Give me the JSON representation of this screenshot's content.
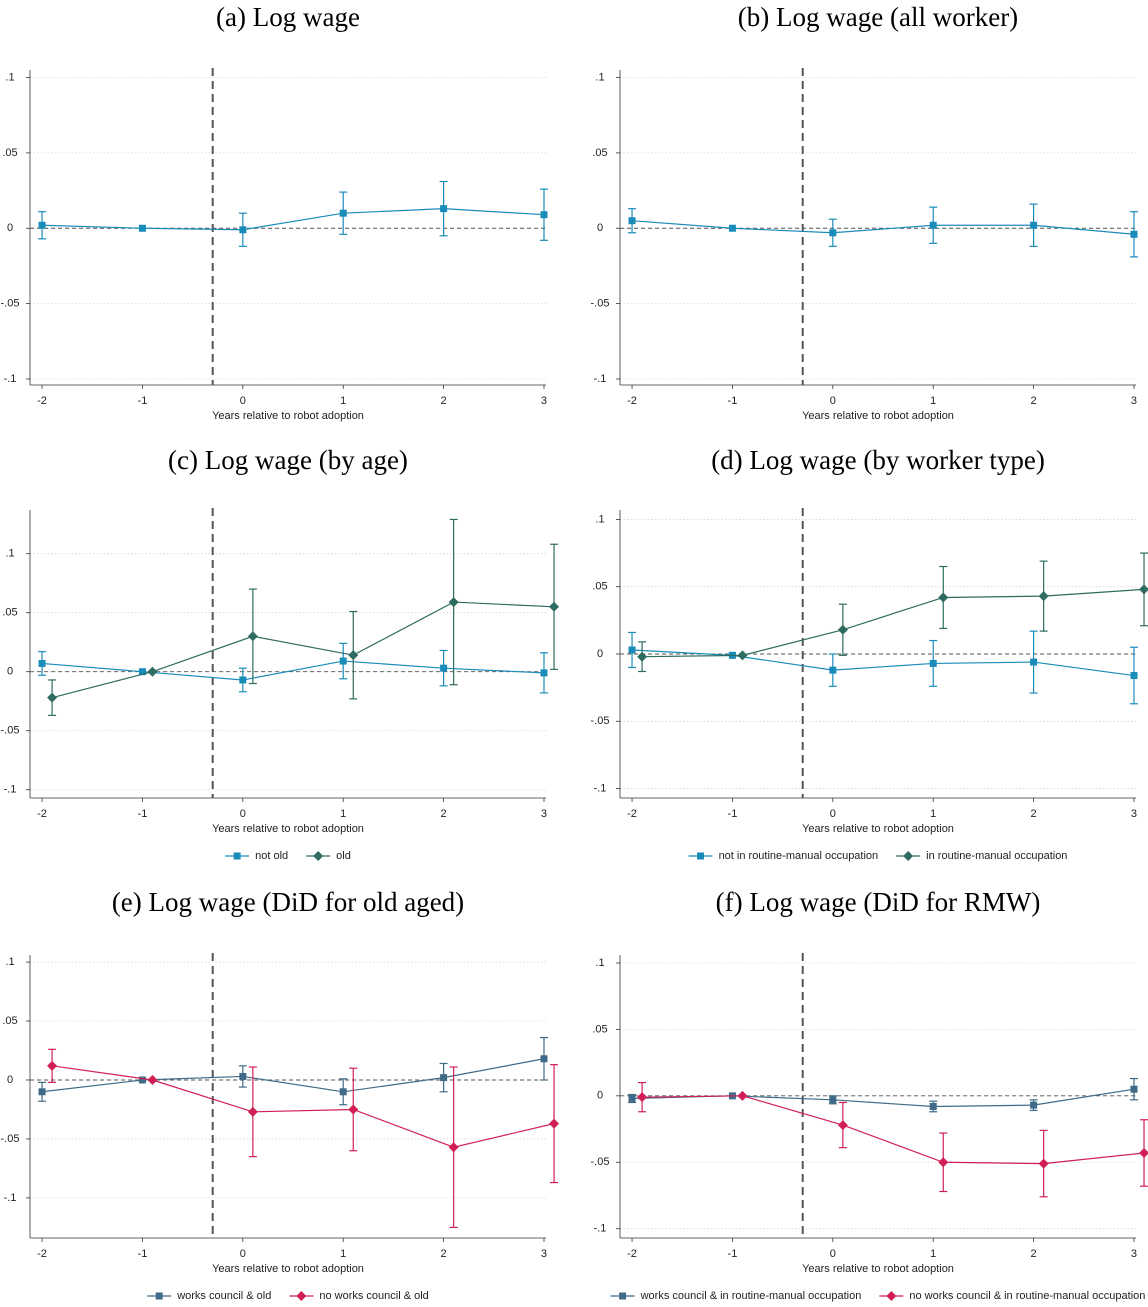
{
  "chart_data": [
    {
      "type": "line",
      "title": "(a) Log wage",
      "xlabel": "Years relative to robot adoption",
      "xlim": [
        -2.12,
        3.02
      ],
      "xticks": [
        -2,
        -1,
        0,
        1,
        2,
        3
      ],
      "ylim": [
        -0.104,
        0.105
      ],
      "yticks": [
        {
          "value": -0.1,
          "label": "-.1"
        },
        {
          "value": -0.05,
          "label": "-.05"
        },
        0,
        {
          "value": 0.05,
          "label": ".05"
        },
        {
          "value": 0.1,
          "label": ".1"
        }
      ],
      "vline": -0.3,
      "hline": 0,
      "grid": true,
      "series": [
        {
          "color": "#1a8cba",
          "marker": "square",
          "x": [
            -2,
            -1,
            0,
            1,
            2,
            3
          ],
          "values": [
            0.002,
            0,
            -0.001,
            0.01,
            0.013,
            0.009
          ],
          "errors": [
            0.009,
            null,
            0.011,
            0.014,
            0.018,
            0.017
          ]
        }
      ]
    },
    {
      "type": "line",
      "title": "(b) Log wage (all worker)",
      "xlabel": "Years relative to robot adoption",
      "xlim": [
        -2.12,
        3.02
      ],
      "xticks": [
        -2,
        -1,
        0,
        1,
        2,
        3
      ],
      "ylim": [
        -0.104,
        0.105
      ],
      "yticks": [
        {
          "value": -0.1,
          "label": "-.1"
        },
        {
          "value": -0.05,
          "label": "-.05"
        },
        0,
        {
          "value": 0.05,
          "label": ".05"
        },
        {
          "value": 0.1,
          "label": ".1"
        }
      ],
      "vline": -0.3,
      "hline": 0,
      "grid": true,
      "series": [
        {
          "color": "#1a8cba",
          "marker": "square",
          "x": [
            -2,
            -1,
            0,
            1,
            2,
            3
          ],
          "values": [
            0.005,
            0,
            -0.003,
            0.002,
            0.002,
            -0.004
          ],
          "errors": [
            0.008,
            null,
            0.009,
            0.012,
            0.014,
            0.015
          ]
        }
      ]
    },
    {
      "type": "line",
      "title": "(c) Log wage (by age)",
      "xlabel": "Years relative to robot adoption",
      "xlim": [
        -2.12,
        3.02
      ],
      "xticks": [
        -2,
        -1,
        0,
        1,
        2,
        3
      ],
      "ylim": [
        -0.107,
        0.137
      ],
      "yticks": [
        {
          "value": -0.1,
          "label": "-.1"
        },
        {
          "value": -0.05,
          "label": "-.05"
        },
        0,
        {
          "value": 0.05,
          "label": ".05"
        },
        {
          "value": 0.1,
          "label": ".1"
        }
      ],
      "vline": -0.3,
      "hline": 0,
      "grid": true,
      "legend": "bottom",
      "series": [
        {
          "name": "not old",
          "color": "#1a8cba",
          "marker": "square",
          "x": [
            -2,
            -1,
            0,
            1,
            2,
            3
          ],
          "values": [
            0.007,
            0,
            -0.007,
            0.009,
            0.003,
            -0.001
          ],
          "errors": [
            0.01,
            null,
            0.01,
            0.015,
            0.015,
            0.017
          ]
        },
        {
          "name": "old",
          "color": "#2e6b60",
          "marker": "diamond",
          "x": [
            -1.9,
            -0.9,
            0.1,
            1.1,
            2.1,
            3.1
          ],
          "values": [
            -0.022,
            0,
            0.03,
            0.014,
            0.059,
            0.055
          ],
          "errors": [
            0.015,
            null,
            0.04,
            0.037,
            0.07,
            0.053
          ]
        }
      ]
    },
    {
      "type": "line",
      "title": "(d) Log wage (by worker type)",
      "xlabel": "Years relative to robot adoption",
      "xlim": [
        -2.12,
        3.02
      ],
      "xticks": [
        -2,
        -1,
        0,
        1,
        2,
        3
      ],
      "ylim": [
        -0.107,
        0.107
      ],
      "yticks": [
        {
          "value": -0.1,
          "label": "-.1"
        },
        {
          "value": -0.05,
          "label": "-.05"
        },
        0,
        {
          "value": 0.05,
          "label": ".05"
        },
        {
          "value": 0.1,
          "label": ".1"
        }
      ],
      "vline": -0.3,
      "hline": 0,
      "grid": true,
      "legend": "bottom",
      "series": [
        {
          "name": "not in routine-manual occupation",
          "color": "#1a8cba",
          "marker": "square",
          "x": [
            -2,
            -1,
            0,
            1,
            2,
            3
          ],
          "values": [
            0.003,
            -0.001,
            -0.012,
            -0.007,
            -0.006,
            -0.016
          ],
          "errors": [
            0.013,
            null,
            0.012,
            0.017,
            0.023,
            0.021
          ]
        },
        {
          "name": "in routine-manual occupation",
          "color": "#2e6b60",
          "marker": "diamond",
          "x": [
            -1.9,
            -0.9,
            0.1,
            1.1,
            2.1,
            3.1
          ],
          "values": [
            -0.002,
            -0.001,
            0.018,
            0.042,
            0.043,
            0.048
          ],
          "errors": [
            0.011,
            null,
            0.019,
            0.023,
            0.026,
            0.027
          ]
        }
      ]
    },
    {
      "type": "line",
      "title": "(e) Log wage (DiD for old aged)",
      "xlabel": "Years relative to robot adoption",
      "xlim": [
        -2.12,
        3.02
      ],
      "xticks": [
        -2,
        -1,
        0,
        1,
        2,
        3
      ],
      "ylim": [
        -0.134,
        0.106
      ],
      "yticks": [
        {
          "value": -0.1,
          "label": "-.1"
        },
        {
          "value": -0.05,
          "label": "-.05"
        },
        0,
        {
          "value": 0.05,
          "label": ".05"
        },
        {
          "value": 0.1,
          "label": ".1"
        }
      ],
      "vline": -0.3,
      "hline": 0,
      "grid": true,
      "legend": "bottom",
      "series": [
        {
          "name": "works council & old",
          "color": "#3f6b88",
          "marker": "square",
          "x": [
            -2,
            -1,
            0,
            1,
            2,
            3
          ],
          "values": [
            -0.01,
            0,
            0.003,
            -0.01,
            0.002,
            0.018
          ],
          "errors": [
            0.008,
            null,
            0.009,
            0.011,
            0.012,
            0.018
          ]
        },
        {
          "name": "no works council & old",
          "color": "#d11f55",
          "marker": "diamond",
          "x": [
            -1.9,
            -0.9,
            0.1,
            1.1,
            2.1,
            3.1
          ],
          "values": [
            0.012,
            0,
            -0.027,
            -0.025,
            -0.057,
            -0.037
          ],
          "errors": [
            0.014,
            null,
            0.038,
            0.035,
            0.068,
            0.05
          ]
        }
      ]
    },
    {
      "type": "line",
      "title": "(f) Log wage (DiD for RMW)",
      "xlabel": "Years relative to robot adoption",
      "xlim": [
        -2.12,
        3.02
      ],
      "xticks": [
        -2,
        -1,
        0,
        1,
        2,
        3
      ],
      "ylim": [
        -0.107,
        0.106
      ],
      "yticks": [
        {
          "value": -0.1,
          "label": "-.1"
        },
        {
          "value": -0.05,
          "label": "-.05"
        },
        0,
        {
          "value": 0.05,
          "label": ".05"
        },
        {
          "value": 0.1,
          "label": ".1"
        }
      ],
      "vline": -0.3,
      "hline": 0,
      "grid": true,
      "legend": "bottom",
      "series": [
        {
          "name": "works council & in routine-manual occupation",
          "color": "#3f6b88",
          "marker": "square",
          "x": [
            -2,
            -1,
            0,
            1,
            2,
            3
          ],
          "values": [
            -0.002,
            0,
            -0.003,
            -0.008,
            -0.007,
            0.005
          ],
          "errors": [
            0.003,
            null,
            0.003,
            0.004,
            0.004,
            0.008
          ]
        },
        {
          "name": "no works council & in routine-manual occupation",
          "color": "#d11f55",
          "marker": "diamond",
          "x": [
            -1.9,
            -0.9,
            0.1,
            1.1,
            2.1,
            3.1
          ],
          "values": [
            -0.001,
            0,
            -0.022,
            -0.05,
            -0.051,
            -0.043
          ],
          "errors": [
            0.011,
            null,
            0.017,
            0.022,
            0.025,
            0.025
          ]
        }
      ]
    }
  ]
}
